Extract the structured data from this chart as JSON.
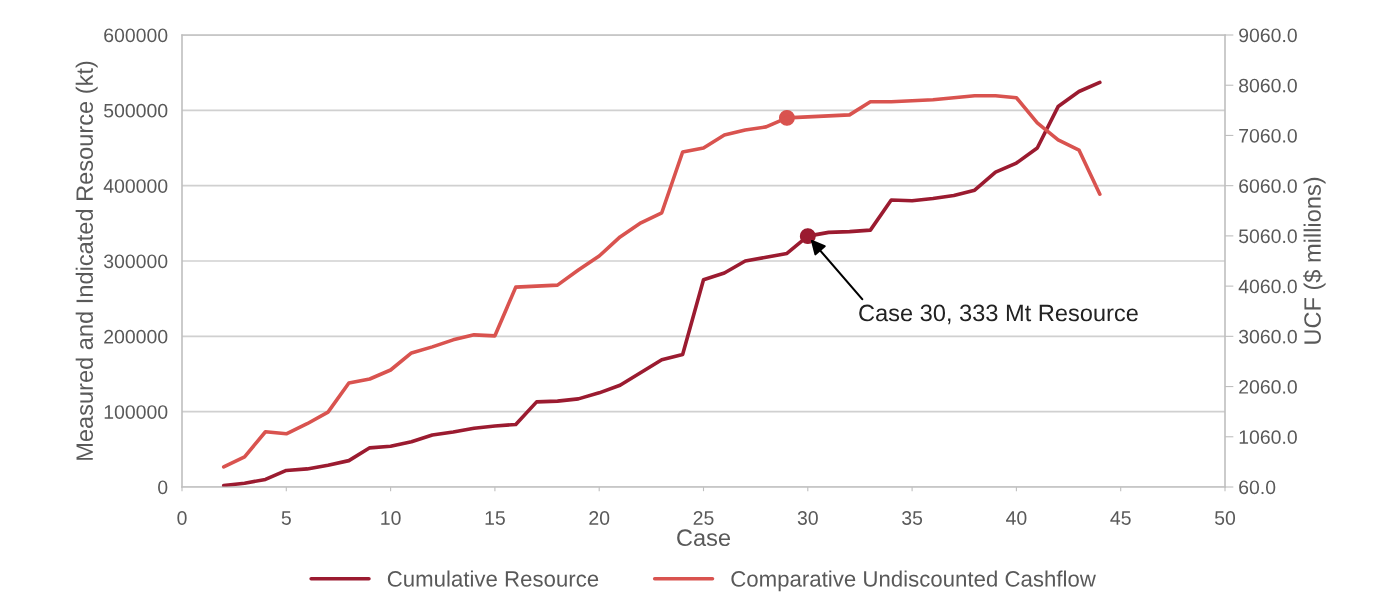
{
  "chart_data": {
    "type": "line",
    "xlabel": "Case",
    "ylabel": "Measured and Indicated Resource (kt)",
    "y2label": "UCF ($ millions)",
    "x": [
      2,
      3,
      4,
      5,
      6,
      7,
      8,
      9,
      10,
      11,
      12,
      13,
      14,
      15,
      16,
      17,
      18,
      19,
      20,
      21,
      22,
      23,
      24,
      25,
      26,
      27,
      28,
      29,
      30,
      31,
      32,
      33,
      34,
      35,
      36,
      37,
      38,
      39,
      40,
      41,
      42,
      43,
      44
    ],
    "series": [
      {
        "name": "Cumulative Resource",
        "color": "#9b1b30",
        "values": [
          2000,
          5000,
          10000,
          22000,
          24000,
          29000,
          35000,
          52000,
          54000,
          60000,
          69000,
          73000,
          78000,
          81000,
          83000,
          113000,
          114000,
          117000,
          125000,
          135000,
          152000,
          169000,
          176000,
          275000,
          284000,
          300000,
          305000,
          310000,
          333000,
          338000,
          339000,
          341000,
          381000,
          380000,
          383000,
          387000,
          394000,
          418000,
          430000,
          450000,
          505000,
          525000,
          537000
        ]
      },
      {
        "name": "Comparative Undiscounted Cashflow",
        "color": "#d9534f",
        "axis": "y2",
        "values": [
          460,
          660,
          1160,
          1120,
          1320,
          1550,
          2130,
          2210,
          2390,
          2730,
          2850,
          2990,
          3090,
          3070,
          4040,
          4060,
          4080,
          4380,
          4660,
          5040,
          5320,
          5520,
          6730,
          6810,
          7070,
          7170,
          7230,
          7410,
          7430,
          7450,
          7470,
          7730,
          7730,
          7750,
          7770,
          7810,
          7850,
          7850,
          7810,
          7310,
          6970,
          6770,
          5890
        ]
      },
      {
        "type": "scatter",
        "x": [
          30
        ],
        "color": "#9b1b30",
        "values": [
          333000
        ]
      },
      {
        "type": "scatter",
        "x": [
          29
        ],
        "color": "#d9534f",
        "axis": "y2",
        "values": [
          7410
        ]
      }
    ],
    "annotations": [
      {
        "text": "Case 30, 333 Mt Resource",
        "x": 30,
        "y": 333000
      }
    ],
    "xlim": [
      0,
      50
    ],
    "xticks": [
      0,
      5,
      10,
      15,
      20,
      25,
      30,
      35,
      40,
      45,
      50
    ],
    "ylim": [
      0,
      600000
    ],
    "yticks": [
      0,
      100000,
      200000,
      300000,
      400000,
      500000,
      600000
    ],
    "y2lim": [
      60,
      9060
    ],
    "y2ticks": [
      {
        "value": 60,
        "label": "60.0"
      },
      {
        "value": 1060,
        "label": "1060.0"
      },
      {
        "value": 2060,
        "label": "2060.0"
      },
      {
        "value": 3060,
        "label": "3060.0"
      },
      {
        "value": 4060,
        "label": "4060.0"
      },
      {
        "value": 5060,
        "label": "5060.0"
      },
      {
        "value": 6060,
        "label": "6060.0"
      },
      {
        "value": 7060,
        "label": "7060.0"
      },
      {
        "value": 8060,
        "label": "8060.0"
      },
      {
        "value": 9060,
        "label": "9060.0"
      }
    ],
    "grid": "y",
    "legend": "bottom",
    "line_style": "solid"
  }
}
